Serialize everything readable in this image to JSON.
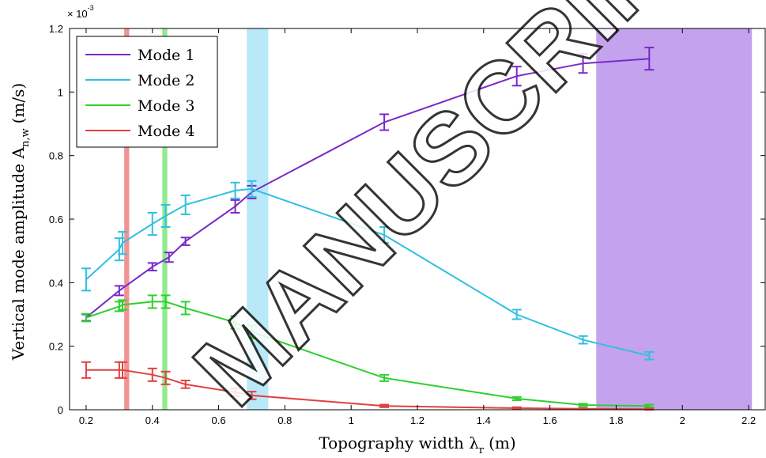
{
  "chart_data": {
    "type": "line",
    "xlabel": "Topography width λ",
    "xlabel_sub": "r",
    "xlabel_unit": "(m)",
    "ylabel": "Vertical mode amplitude A",
    "ylabel_sub": "n,w",
    "ylabel_unit": "(m/s)",
    "y_multiplier": "× 10",
    "y_multiplier_exp": "-3",
    "xlim": [
      0.15,
      2.25
    ],
    "ylim": [
      0,
      1.2
    ],
    "xticks": [
      0.2,
      0.4,
      0.6,
      0.8,
      1,
      1.2,
      1.4,
      1.6,
      1.8,
      2,
      2.2
    ],
    "xtick_labels": [
      "0.2",
      "0.4",
      "0.6",
      "0.8",
      "1",
      "1.2",
      "1.4",
      "1.6",
      "1.8",
      "2",
      "2.2"
    ],
    "yticks": [
      0,
      0.2,
      0.4,
      0.6,
      0.8,
      1,
      1.2
    ],
    "ytick_labels": [
      "0",
      "0.2",
      "0.4",
      "0.6",
      "0.8",
      "1",
      "1.2"
    ],
    "legend_position": "top-left",
    "grid": false,
    "watermark": "MANUSCRIPT",
    "shaded_bands": [
      {
        "x0": 0.315,
        "x1": 0.33,
        "color": "#f08080",
        "opacity": 0.85
      },
      {
        "x0": 0.43,
        "x1": 0.445,
        "color": "#7de87d",
        "opacity": 0.85
      },
      {
        "x0": 0.685,
        "x1": 0.75,
        "color": "#a8e4f8",
        "opacity": 0.8
      },
      {
        "x0": 1.74,
        "x1": 2.21,
        "color": "#b58be8",
        "opacity": 0.8
      }
    ],
    "series": [
      {
        "name": "Mode 1",
        "color": "#7a28c8",
        "x": [
          0.2,
          0.3,
          0.4,
          0.45,
          0.5,
          0.65,
          0.7,
          1.1,
          1.5,
          1.7,
          1.9
        ],
        "y": [
          0.29,
          0.375,
          0.45,
          0.48,
          0.53,
          0.64,
          0.685,
          0.905,
          1.05,
          1.09,
          1.105
        ],
        "err": [
          0.01,
          0.015,
          0.012,
          0.015,
          0.012,
          0.02,
          0.02,
          0.025,
          0.03,
          0.03,
          0.035
        ]
      },
      {
        "name": "Mode 2",
        "color": "#30c0e0",
        "x": [
          0.2,
          0.3,
          0.31,
          0.4,
          0.44,
          0.5,
          0.65,
          0.7,
          1.1,
          1.5,
          1.7,
          1.9
        ],
        "y": [
          0.41,
          0.505,
          0.525,
          0.585,
          0.61,
          0.645,
          0.69,
          0.695,
          0.55,
          0.3,
          0.22,
          0.17
        ],
        "err": [
          0.035,
          0.035,
          0.035,
          0.035,
          0.035,
          0.03,
          0.025,
          0.025,
          0.025,
          0.015,
          0.012,
          0.012
        ]
      },
      {
        "name": "Mode 3",
        "color": "#2ed02e",
        "x": [
          0.2,
          0.3,
          0.31,
          0.4,
          0.44,
          0.5,
          0.65,
          0.7,
          1.1,
          1.5,
          1.7,
          1.9
        ],
        "y": [
          0.29,
          0.325,
          0.33,
          0.34,
          0.34,
          0.32,
          0.275,
          0.245,
          0.1,
          0.035,
          0.015,
          0.012
        ],
        "err": [
          0.012,
          0.015,
          0.015,
          0.02,
          0.02,
          0.02,
          0.02,
          0.02,
          0.01,
          0.005,
          0.004,
          0.004
        ]
      },
      {
        "name": "Mode 4",
        "color": "#e04040",
        "x": [
          0.2,
          0.3,
          0.31,
          0.4,
          0.44,
          0.5,
          0.65,
          0.7,
          1.1,
          1.5,
          1.7,
          1.9
        ],
        "y": [
          0.125,
          0.125,
          0.125,
          0.11,
          0.1,
          0.08,
          0.055,
          0.045,
          0.012,
          0.005,
          0.003,
          0.002
        ],
        "err": [
          0.025,
          0.025,
          0.025,
          0.02,
          0.02,
          0.012,
          0.012,
          0.012,
          0.004,
          0.003,
          0.002,
          0.002
        ]
      }
    ]
  }
}
